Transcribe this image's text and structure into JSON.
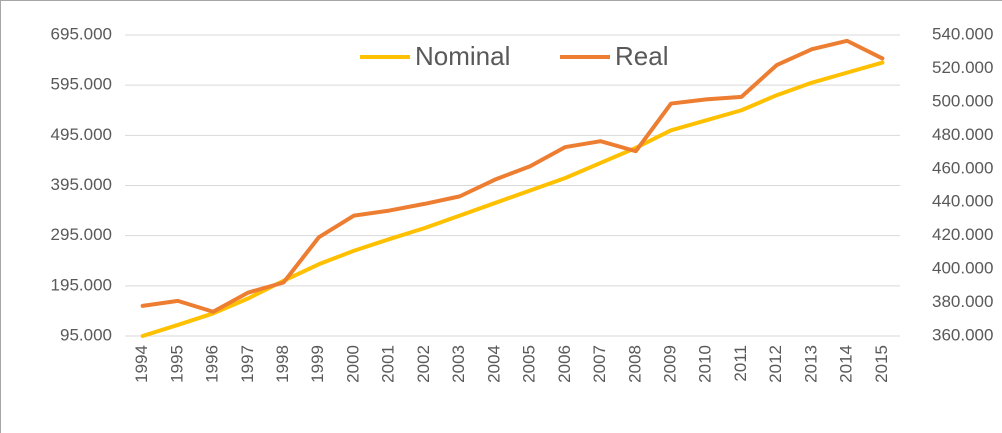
{
  "chart_data": {
    "type": "line",
    "categories": [
      "1994",
      "1995",
      "1996",
      "1997",
      "1998",
      "1999",
      "2000",
      "2001",
      "2002",
      "2003",
      "2004",
      "2005",
      "2006",
      "2007",
      "2008",
      "2009",
      "2010",
      "2011",
      "2012",
      "2013",
      "2014",
      "2015"
    ],
    "series": [
      {
        "name": "Nominal",
        "color": "#ffc000",
        "axis": "y",
        "values": [
          95000,
          117000,
          140000,
          170000,
          205000,
          238000,
          265000,
          288000,
          310000,
          335000,
          360000,
          385000,
          410000,
          440000,
          470000,
          505000,
          525000,
          545000,
          575000,
          600000,
          620000,
          640000
        ]
      },
      {
        "name": "Real",
        "color": "#ed7d31",
        "axis": "y2",
        "values": [
          378000,
          381000,
          374500,
          386000,
          392000,
          419000,
          432000,
          435000,
          439000,
          443500,
          453500,
          461500,
          473000,
          476500,
          470500,
          499000,
          501500,
          503000,
          522000,
          531500,
          536500,
          526000
        ]
      }
    ],
    "ylim": [
      95000,
      695000
    ],
    "yticks": [
      {
        "value": 95000,
        "label": "95.000"
      },
      {
        "value": 195000,
        "label": "195.000"
      },
      {
        "value": 295000,
        "label": "295.000"
      },
      {
        "value": 395000,
        "label": "395.000"
      },
      {
        "value": 495000,
        "label": "495.000"
      },
      {
        "value": 595000,
        "label": "595.000"
      },
      {
        "value": 695000,
        "label": "695.000"
      }
    ],
    "y2lim": [
      360000,
      540000
    ],
    "y2ticks": [
      {
        "value": 360000,
        "label": "360.000"
      },
      {
        "value": 380000,
        "label": "380.000"
      },
      {
        "value": 400000,
        "label": "400.000"
      },
      {
        "value": 420000,
        "label": "420.000"
      },
      {
        "value": 440000,
        "label": "440.000"
      },
      {
        "value": 460000,
        "label": "460.000"
      },
      {
        "value": 480000,
        "label": "480.000"
      },
      {
        "value": 500000,
        "label": "500.000"
      },
      {
        "value": 520000,
        "label": "520.000"
      },
      {
        "value": 540000,
        "label": "540.000"
      }
    ],
    "grid": true,
    "legend": "top"
  }
}
